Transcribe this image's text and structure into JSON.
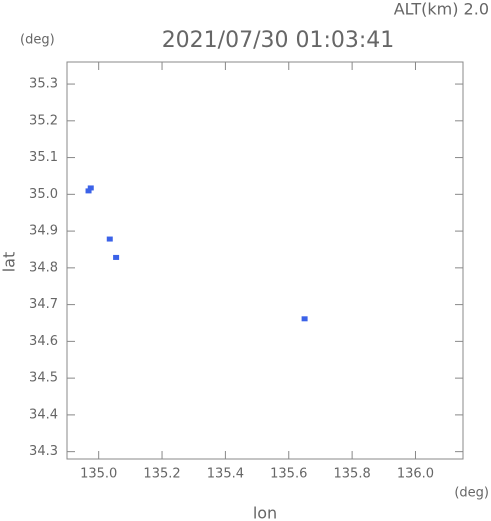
{
  "chart_data": {
    "type": "scatter",
    "title": "2021/07/30 01:03:41",
    "annotation": "ALT(km) 2.0",
    "y_unit": "(deg)",
    "x_unit": "(deg)",
    "xlabel": "lon",
    "ylabel": "lat",
    "color": "#3b62e8",
    "x": [
      134.968,
      134.975,
      135.035,
      135.055,
      135.65
    ],
    "values": [
      35.008,
      35.016,
      34.877,
      34.827,
      34.66
    ],
    "xlim": [
      134.9,
      136.15
    ],
    "ylim": [
      34.28,
      35.36
    ],
    "xticks": [
      {
        "value": 135,
        "label": "135.0"
      },
      135.2,
      135.4,
      135.6,
      135.8,
      {
        "value": 136,
        "label": "136.0"
      }
    ],
    "yticks": [
      {
        "value": 34.3,
        "label": "34.3"
      },
      34.4,
      34.5,
      34.6,
      34.7,
      34.8,
      34.9,
      {
        "value": 35,
        "label": "35.0"
      },
      35.1,
      35.2,
      35.3
    ]
  }
}
